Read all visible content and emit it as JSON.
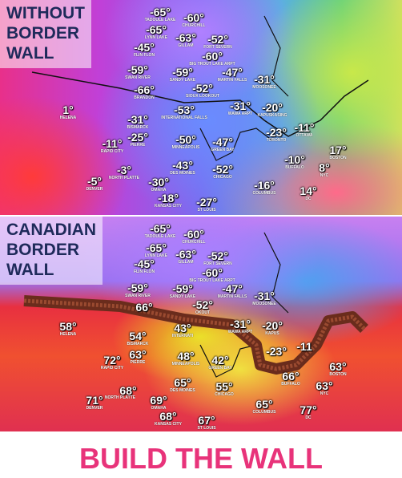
{
  "panels": [
    {
      "title": [
        "WITHOUT",
        "BORDER",
        "WALL"
      ],
      "labels": [
        {
          "temp": "-65°",
          "city": "TADOULE LAKE"
        },
        {
          "temp": "-60°",
          "city": "CHURCHILL"
        },
        {
          "temp": "-65°",
          "city": "LYNN LAKE"
        },
        {
          "temp": "-63°",
          "city": "GILLAM"
        },
        {
          "temp": "-52°",
          "city": "FORT SEVERN"
        },
        {
          "temp": "-45°",
          "city": "FLIN FLON"
        },
        {
          "temp": "-60°",
          "city": "BIG TROUT LAKE ARPT"
        },
        {
          "temp": "-59°",
          "city": "SWAN RIVER"
        },
        {
          "temp": "-59°",
          "city": "SANDY LAKE"
        },
        {
          "temp": "-47°",
          "city": "MARTIN FALLS"
        },
        {
          "temp": "-31°",
          "city": "MOOSONEE"
        },
        {
          "temp": "-66°",
          "city": "BRANDON"
        },
        {
          "temp": "-52°",
          "city": "SIOUX LOOKOUT"
        },
        {
          "temp": "1°",
          "city": "HELENA"
        },
        {
          "temp": "-53°",
          "city": "INTERNATIONAL FALLS"
        },
        {
          "temp": "-31°",
          "city": "WAWA ARPT"
        },
        {
          "temp": "-20°",
          "city": "KAPUSKASING"
        },
        {
          "temp": "-31°",
          "city": "BISMARCK"
        },
        {
          "temp": "-25°",
          "city": "PIERRE"
        },
        {
          "temp": "-11°",
          "city": "RAPID CITY"
        },
        {
          "temp": "-50°",
          "city": "MINNEAPOLIS"
        },
        {
          "temp": "-47°",
          "city": "GREEN BAY"
        },
        {
          "temp": "-23°",
          "city": "TORONTO"
        },
        {
          "temp": "-11°",
          "city": "OTTAWA"
        },
        {
          "temp": "17°",
          "city": "BOSTON"
        },
        {
          "temp": "-10°",
          "city": "BUFFALO"
        },
        {
          "temp": "8°",
          "city": "NYC"
        },
        {
          "temp": "-3°",
          "city": "NORTH PLATTE"
        },
        {
          "temp": "-43°",
          "city": "DES MOINES"
        },
        {
          "temp": "-52°",
          "city": "CHICAGO"
        },
        {
          "temp": "-5°",
          "city": "DENVER"
        },
        {
          "temp": "-30°",
          "city": "OMAHA"
        },
        {
          "temp": "-16°",
          "city": "COLUMBUS"
        },
        {
          "temp": "14°",
          "city": "DC"
        },
        {
          "temp": "-18°",
          "city": "KANSAS CITY"
        },
        {
          "temp": "-27°",
          "city": "ST LOUIS"
        }
      ]
    },
    {
      "title": [
        "CANADIAN",
        "BORDER",
        "WALL"
      ],
      "labels": [
        {
          "temp": "-65°",
          "city": "TADOULE LAKE"
        },
        {
          "temp": "-60°",
          "city": "CHURCHILL"
        },
        {
          "temp": "-65°",
          "city": "LYNN LAKE"
        },
        {
          "temp": "-63°",
          "city": "GILLAM"
        },
        {
          "temp": "-52°",
          "city": "FORT SEVERN"
        },
        {
          "temp": "-45°",
          "city": "FLIN FLON"
        },
        {
          "temp": "-60°",
          "city": "BIG TROUT LAKE ARPT"
        },
        {
          "temp": "-59°",
          "city": "SWAN RIVER"
        },
        {
          "temp": "-59°",
          "city": "SANDY LAKE"
        },
        {
          "temp": "-47°",
          "city": "MARTIN FALLS"
        },
        {
          "temp": "-31°",
          "city": "MOOSONEE"
        },
        {
          "temp": "66°"
        },
        {
          "temp": "-52°",
          "city": "OKOUT"
        },
        {
          "temp": "58°",
          "city": "HELENA"
        },
        {
          "temp": "43°",
          "city": "INTERNATI"
        },
        {
          "temp": "-31°",
          "city": "WAWA ARPT"
        },
        {
          "temp": "-20°",
          "city": "KAPUS"
        },
        {
          "temp": "54°",
          "city": "BISMARCK"
        },
        {
          "temp": "63°",
          "city": "PIERRE"
        },
        {
          "temp": "72°",
          "city": "RAPID CITY"
        },
        {
          "temp": "48°",
          "city": "MINNEAPOLIS"
        },
        {
          "temp": "42°",
          "city": "GREEN BAY"
        },
        {
          "temp": "-23°"
        },
        {
          "temp": "-11"
        },
        {
          "temp": "63°",
          "city": "BOSTON"
        },
        {
          "temp": "66°",
          "city": "BUFFALO"
        },
        {
          "temp": "63°",
          "city": "NYC"
        },
        {
          "temp": "68°"
        },
        {
          "temp": "65°",
          "city": "DES MOINES"
        },
        {
          "temp": "55°",
          "city": "CHICAGO"
        },
        {
          "temp": "71°",
          "city": "DENVER"
        },
        {
          "temp": "69°",
          "city": "OMAHA"
        },
        {
          "temp": "65°",
          "city": "COLUMBUS"
        },
        {
          "temp": "77°",
          "city": "DC"
        },
        {
          "temp": "68°",
          "city": "KANSAS CITY"
        },
        {
          "temp": "67°",
          "city": "ST LOUIS"
        },
        {
          "city": "NORTH PLATTE"
        }
      ]
    }
  ],
  "slogan": "BUILD THE WALL"
}
